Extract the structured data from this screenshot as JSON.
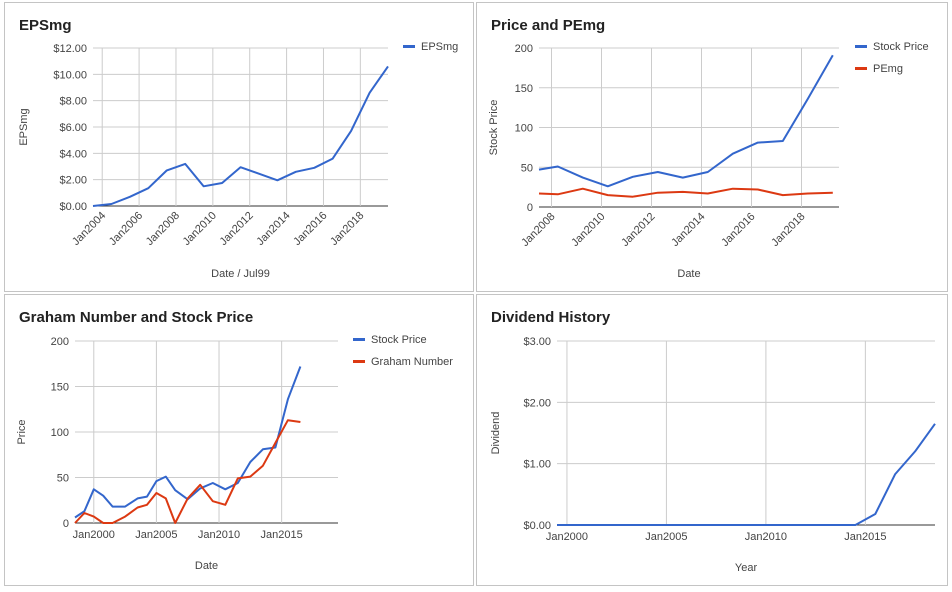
{
  "chart_data": [
    {
      "type": "line",
      "title": "EPSmg",
      "xlabel": "Date / Jul99",
      "ylabel": "EPSmg",
      "x_ticks": [
        2004,
        2006,
        2008,
        2010,
        2012,
        2014,
        2016,
        2018
      ],
      "x_tick_labels": [
        "Jan2004",
        "Jan2006",
        "Jan2008",
        "Jan2010",
        "Jan2012",
        "Jan2014",
        "Jan2016",
        "Jan2018"
      ],
      "x_range": [
        2003.5,
        2019.5
      ],
      "ylim": [
        0,
        12
      ],
      "y_ticks": [
        0,
        2,
        4,
        6,
        8,
        10,
        12
      ],
      "y_tick_labels": [
        "$0.00",
        "$2.00",
        "$4.00",
        "$6.00",
        "$8.00",
        "$10.00",
        "$12.00"
      ],
      "x_tick_rotation": "diagonal",
      "grid": true,
      "legend_position": "right",
      "series": [
        {
          "name": "EPSmg",
          "color": "#3366cc",
          "x": [
            2003.5,
            2004.5,
            2005.5,
            2006.5,
            2007.5,
            2008.5,
            2009.5,
            2010.5,
            2011.5,
            2012.5,
            2013.5,
            2014.5,
            2015.5,
            2016.5,
            2017.5,
            2018.5,
            2019.5
          ],
          "y": [
            0.0,
            0.15,
            0.7,
            1.35,
            2.7,
            3.2,
            1.5,
            1.75,
            2.95,
            2.45,
            1.95,
            2.6,
            2.9,
            3.6,
            5.7,
            8.6,
            10.6
          ]
        }
      ]
    },
    {
      "type": "line",
      "title": "Price and PEmg",
      "xlabel": "Date",
      "ylabel": "Stock Price",
      "x_ticks": [
        2008,
        2010,
        2012,
        2014,
        2016,
        2018
      ],
      "x_tick_labels": [
        "Jan2008",
        "Jan2010",
        "Jan2012",
        "Jan2014",
        "Jan2016",
        "Jan2018"
      ],
      "x_range": [
        2007.5,
        2019.5
      ],
      "ylim": [
        0,
        200
      ],
      "y_ticks": [
        0,
        50,
        100,
        150,
        200
      ],
      "y_tick_labels": [
        "0",
        "50",
        "100",
        "150",
        "200"
      ],
      "x_tick_rotation": "diagonal",
      "grid": true,
      "legend_position": "right",
      "series": [
        {
          "name": "Stock Price",
          "color": "#3366cc",
          "x": [
            2007.5,
            2008.25,
            2009.25,
            2010.25,
            2011.25,
            2012.25,
            2013.25,
            2014.25,
            2015.25,
            2016.25,
            2017.25,
            2018.25,
            2019.25
          ],
          "y": [
            47,
            51,
            37,
            26,
            38,
            44,
            37,
            44,
            67,
            81,
            83,
            136,
            191
          ]
        },
        {
          "name": "PEmg",
          "color": "#dc3912",
          "x": [
            2007.5,
            2008.25,
            2009.25,
            2010.25,
            2011.25,
            2012.25,
            2013.25,
            2014.25,
            2015.25,
            2016.25,
            2017.25,
            2018.25,
            2019.25
          ],
          "y": [
            17,
            16,
            23,
            15,
            13,
            18,
            19,
            17,
            23,
            22,
            15,
            17,
            18
          ]
        }
      ]
    },
    {
      "type": "line",
      "title": "Graham Number and Stock Price",
      "xlabel": "Date",
      "ylabel": "Price",
      "x_ticks": [
        2000,
        2005,
        2010,
        2015
      ],
      "x_tick_labels": [
        "Jan2000",
        "Jan2005",
        "Jan2010",
        "Jan2015"
      ],
      "x_range": [
        1998.5,
        2019.5
      ],
      "ylim": [
        0,
        200
      ],
      "y_ticks": [
        0,
        50,
        100,
        150,
        200
      ],
      "y_tick_labels": [
        "0",
        "50",
        "100",
        "150",
        "200"
      ],
      "x_tick_rotation": "none",
      "grid": true,
      "legend_position": "right",
      "series": [
        {
          "name": "Stock Price",
          "color": "#3366cc",
          "x": [
            1998.5,
            1999.25,
            2000.0,
            2000.75,
            2001.5,
            2002.5,
            2003.5,
            2004.25,
            2005.0,
            2005.75,
            2006.5,
            2007.5,
            2008.5,
            2009.5,
            2010.5,
            2011.5,
            2012.5,
            2013.5,
            2014.5,
            2015.5,
            2016.5,
            2017.5,
            2018.5,
            2019.5
          ],
          "y": [
            6,
            13,
            37,
            30,
            18,
            18,
            27,
            29,
            46,
            51,
            36,
            26,
            38,
            44,
            37,
            44,
            67,
            81,
            83,
            136,
            172,
            null,
            null,
            null
          ]
        },
        {
          "name": "Graham Number",
          "color": "#dc3912",
          "x": [
            1998.5,
            1999.25,
            2000.0,
            2000.75,
            2001.5,
            2002.5,
            2003.5,
            2004.25,
            2005.0,
            2005.75,
            2006.5,
            2007.5,
            2008.5,
            2009.5,
            2010.5,
            2011.5,
            2012.5,
            2013.5,
            2014.5,
            2015.5,
            2016.5
          ],
          "y": [
            0,
            11,
            7,
            0,
            0,
            7,
            17,
            20,
            33,
            27,
            0,
            27,
            42,
            24,
            20,
            49,
            51,
            63,
            88,
            113,
            111
          ]
        }
      ]
    },
    {
      "type": "line",
      "title": "Dividend History",
      "xlabel": "Year",
      "ylabel": "Dividend",
      "x_ticks": [
        2000,
        2005,
        2010,
        2015
      ],
      "x_tick_labels": [
        "Jan2000",
        "Jan2005",
        "Jan2010",
        "Jan2015"
      ],
      "x_range": [
        1999.5,
        2018.5
      ],
      "ylim": [
        0,
        3
      ],
      "y_ticks": [
        0,
        1,
        2,
        3
      ],
      "y_tick_labels": [
        "$0.00",
        "$1.00",
        "$2.00",
        "$3.00"
      ],
      "x_tick_rotation": "none",
      "grid": true,
      "legend_position": "none",
      "series": [
        {
          "color": "#3366cc",
          "x": [
            1999.5,
            2014.5,
            2015.5,
            2016.5,
            2017.5,
            2018.5
          ],
          "y": [
            0,
            0,
            0.18,
            0.83,
            1.2,
            1.65
          ]
        }
      ]
    }
  ]
}
